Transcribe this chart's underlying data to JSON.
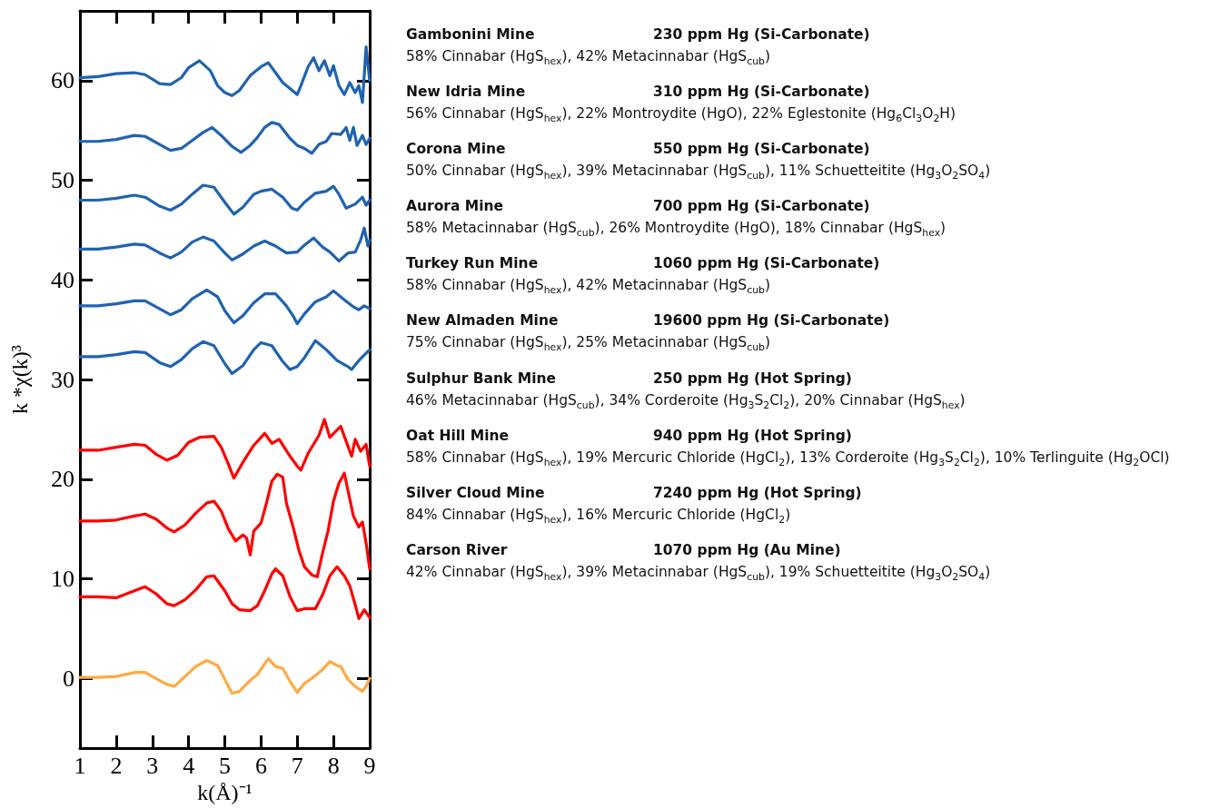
{
  "chart_data": {
    "type": "line",
    "xlabel": "k(Å)⁻¹",
    "ylabel": "k *χ(k)³",
    "xlim": [
      1,
      9
    ],
    "ylim": [
      -7,
      67
    ],
    "xticks": [
      1,
      2,
      3,
      4,
      5,
      6,
      7,
      8,
      9
    ],
    "yticks": [
      0,
      10,
      20,
      30,
      40,
      50,
      60
    ],
    "series": [
      {
        "color": "#1f63b0",
        "x": [
          1,
          1.5,
          2,
          2.5,
          2.8,
          3.2,
          3.5,
          3.8,
          4.0,
          4.3,
          4.6,
          4.8,
          5.0,
          5.2,
          5.4,
          5.7,
          6.0,
          6.2,
          6.4,
          6.6,
          6.8,
          7.0,
          7.1,
          7.3,
          7.45,
          7.6,
          7.75,
          7.9,
          8.0,
          8.15,
          8.3,
          8.45,
          8.6,
          8.7,
          8.8,
          8.9,
          9.0
        ],
        "values": [
          60.3,
          60.4,
          60.7,
          60.8,
          60.6,
          59.7,
          59.6,
          60.3,
          61.3,
          62.0,
          61.0,
          59.5,
          58.8,
          58.5,
          59.0,
          60.5,
          61.4,
          61.8,
          60.8,
          59.8,
          59.2,
          58.6,
          59.5,
          61.4,
          62.3,
          61.0,
          62.0,
          60.5,
          61.5,
          59.5,
          58.6,
          59.8,
          58.8,
          59.5,
          57.8,
          63.4,
          60.0
        ]
      },
      {
        "color": "#1f63b0",
        "x": [
          1,
          1.5,
          2,
          2.5,
          2.8,
          3.2,
          3.5,
          3.8,
          4.1,
          4.4,
          4.65,
          4.9,
          5.2,
          5.45,
          5.7,
          5.9,
          6.1,
          6.3,
          6.5,
          6.8,
          7.0,
          7.2,
          7.4,
          7.6,
          7.8,
          7.95,
          8.2,
          8.35,
          8.45,
          8.55,
          8.65,
          8.8,
          8.9,
          9.0
        ],
        "values": [
          53.9,
          53.9,
          54.1,
          54.5,
          54.4,
          53.6,
          53.0,
          53.2,
          54.0,
          54.8,
          55.3,
          54.5,
          53.4,
          52.8,
          53.5,
          54.3,
          55.3,
          55.8,
          55.6,
          54.2,
          53.5,
          53.2,
          52.7,
          53.6,
          53.9,
          54.7,
          54.6,
          55.3,
          54.0,
          55.3,
          53.5,
          54.5,
          53.6,
          54.2
        ]
      },
      {
        "color": "#1f63b0",
        "x": [
          1,
          1.5,
          2,
          2.5,
          2.8,
          3.2,
          3.5,
          3.8,
          4.1,
          4.4,
          4.7,
          5.0,
          5.25,
          5.5,
          5.8,
          6.0,
          6.3,
          6.6,
          6.85,
          7.0,
          7.2,
          7.5,
          7.8,
          8.0,
          8.15,
          8.35,
          8.6,
          8.8,
          8.9,
          9.0
        ],
        "values": [
          48.0,
          48.0,
          48.2,
          48.5,
          48.3,
          47.4,
          47.0,
          47.6,
          48.6,
          49.5,
          49.3,
          47.8,
          46.6,
          47.3,
          48.6,
          48.9,
          49.1,
          48.3,
          47.2,
          47.0,
          47.8,
          48.7,
          48.9,
          49.4,
          48.6,
          47.2,
          47.6,
          48.3,
          47.5,
          48.0
        ]
      },
      {
        "color": "#1f63b0",
        "x": [
          1,
          1.5,
          2,
          2.5,
          2.8,
          3.2,
          3.5,
          3.8,
          4.1,
          4.4,
          4.7,
          5.0,
          5.2,
          5.5,
          5.8,
          6.1,
          6.4,
          6.7,
          7.0,
          7.2,
          7.45,
          7.7,
          7.9,
          8.15,
          8.4,
          8.6,
          8.75,
          8.85,
          8.95,
          9.0
        ],
        "values": [
          43.1,
          43.1,
          43.3,
          43.6,
          43.5,
          42.7,
          42.2,
          42.8,
          43.8,
          44.3,
          43.9,
          42.7,
          42.0,
          42.6,
          43.4,
          43.9,
          43.4,
          42.7,
          42.8,
          43.5,
          44.2,
          43.3,
          42.8,
          41.9,
          42.7,
          42.8,
          44.0,
          45.2,
          43.4,
          44.0
        ]
      },
      {
        "color": "#1f63b0",
        "x": [
          1,
          1.5,
          2,
          2.5,
          2.8,
          3.2,
          3.5,
          3.8,
          4.1,
          4.5,
          4.8,
          5.0,
          5.25,
          5.5,
          5.8,
          6.1,
          6.4,
          6.7,
          6.9,
          7.0,
          7.2,
          7.5,
          7.8,
          8.0,
          8.3,
          8.55,
          8.7,
          8.85,
          9.0
        ],
        "values": [
          37.4,
          37.4,
          37.6,
          37.9,
          37.9,
          37.1,
          36.5,
          37.0,
          38.1,
          39.0,
          38.3,
          36.9,
          35.7,
          36.4,
          37.7,
          38.6,
          38.6,
          37.4,
          36.3,
          35.6,
          36.6,
          37.8,
          38.3,
          38.9,
          38.0,
          37.3,
          37.0,
          37.4,
          37.1
        ]
      },
      {
        "color": "#1f63b0",
        "x": [
          1,
          1.5,
          2,
          2.5,
          2.8,
          3.2,
          3.5,
          3.8,
          4.1,
          4.4,
          4.7,
          5.0,
          5.2,
          5.5,
          5.8,
          6.0,
          6.3,
          6.6,
          6.8,
          7.0,
          7.2,
          7.5,
          7.8,
          8.1,
          8.4,
          8.5,
          8.7,
          9.0
        ],
        "values": [
          32.3,
          32.3,
          32.5,
          32.8,
          32.7,
          31.7,
          31.3,
          32.0,
          33.1,
          33.8,
          33.4,
          31.6,
          30.6,
          31.4,
          33.0,
          33.7,
          33.4,
          31.8,
          31.0,
          31.3,
          32.2,
          33.9,
          33.0,
          31.9,
          31.3,
          31.0,
          31.9,
          33.0
        ]
      },
      {
        "color": "#ff0000",
        "x": [
          1,
          1.5,
          2,
          2.5,
          2.8,
          3.1,
          3.4,
          3.7,
          4.0,
          4.3,
          4.7,
          4.9,
          5.1,
          5.25,
          5.5,
          5.8,
          6.1,
          6.3,
          6.5,
          6.8,
          7.0,
          7.1,
          7.3,
          7.6,
          7.75,
          7.9,
          8.2,
          8.35,
          8.5,
          8.6,
          8.75,
          8.9,
          9.0
        ],
        "values": [
          22.9,
          22.9,
          23.2,
          23.5,
          23.4,
          22.5,
          21.9,
          22.4,
          23.7,
          24.2,
          24.3,
          23.2,
          21.5,
          20.1,
          21.7,
          23.4,
          24.6,
          23.6,
          24.0,
          22.3,
          21.3,
          20.9,
          22.6,
          24.4,
          26.0,
          24.2,
          25.3,
          23.8,
          22.3,
          24.0,
          22.8,
          23.5,
          21.3
        ]
      },
      {
        "color": "#ff0000",
        "x": [
          1,
          1.5,
          2,
          2.5,
          2.8,
          3.1,
          3.4,
          3.6,
          3.9,
          4.2,
          4.5,
          4.7,
          4.9,
          5.1,
          5.3,
          5.5,
          5.6,
          5.7,
          5.8,
          6.0,
          6.15,
          6.3,
          6.45,
          6.6,
          6.7,
          6.9,
          7.05,
          7.2,
          7.4,
          7.55,
          7.7,
          7.85,
          8.0,
          8.15,
          8.3,
          8.45,
          8.55,
          8.7,
          8.8,
          8.9,
          9.0
        ],
        "values": [
          15.8,
          15.8,
          15.9,
          16.3,
          16.5,
          16.0,
          15.1,
          14.7,
          15.4,
          16.6,
          17.6,
          17.8,
          16.8,
          15.0,
          13.8,
          14.4,
          14.1,
          12.4,
          14.8,
          15.6,
          17.6,
          19.8,
          20.5,
          20.2,
          17.6,
          15.0,
          12.8,
          11.2,
          10.4,
          10.2,
          12.6,
          14.8,
          17.8,
          19.6,
          20.6,
          18.0,
          16.3,
          15.2,
          15.7,
          13.6,
          11.0
        ]
      },
      {
        "color": "#ff0000",
        "x": [
          1,
          1.5,
          2,
          2.5,
          2.8,
          3.1,
          3.4,
          3.6,
          3.9,
          4.2,
          4.5,
          4.7,
          5.0,
          5.2,
          5.4,
          5.7,
          5.9,
          6.1,
          6.3,
          6.4,
          6.6,
          6.8,
          7.0,
          7.2,
          7.5,
          7.7,
          7.9,
          8.1,
          8.3,
          8.45,
          8.6,
          8.7,
          8.85,
          9.0
        ],
        "values": [
          8.2,
          8.2,
          8.1,
          8.8,
          9.2,
          8.5,
          7.5,
          7.3,
          7.9,
          8.9,
          10.2,
          10.3,
          8.8,
          7.5,
          6.9,
          6.8,
          7.3,
          8.8,
          10.5,
          11.0,
          10.3,
          8.2,
          6.8,
          7.0,
          7.0,
          8.4,
          10.3,
          11.2,
          10.3,
          9.3,
          7.4,
          6.0,
          6.9,
          6.1
        ]
      },
      {
        "color": "#ffaa44",
        "x": [
          1,
          1.5,
          2,
          2.5,
          2.8,
          3.1,
          3.4,
          3.6,
          3.9,
          4.2,
          4.5,
          4.8,
          5.0,
          5.2,
          5.4,
          5.7,
          5.9,
          6.2,
          6.4,
          6.6,
          6.8,
          7.0,
          7.2,
          7.4,
          7.7,
          7.9,
          8.1,
          8.2,
          8.4,
          8.6,
          8.8,
          8.9,
          9.0
        ],
        "values": [
          0.1,
          0.1,
          0.2,
          0.6,
          0.6,
          0.0,
          -0.6,
          -0.8,
          0.2,
          1.2,
          1.8,
          1.3,
          -0.1,
          -1.5,
          -1.3,
          -0.2,
          0.4,
          2.0,
          1.2,
          1.0,
          -0.3,
          -1.4,
          -0.5,
          0.0,
          0.9,
          1.7,
          1.3,
          1.2,
          -0.1,
          -0.8,
          -1.3,
          -0.8,
          0.0
        ]
      }
    ],
    "annotations": [
      "Gambonini Mine",
      "230 ppm Hg (Si-Carbonate)",
      "58% Cinnabar (HgS$_{hex}$), 42% Metacinnabar (HgS$_{cub}$)",
      "New Idria Mine",
      "310 ppm Hg (Si-Carbonate)",
      "56% Cinnabar (HgS$_{hex}$), 22% Montroydite (HgO), 22% Eglestonite (Hg$_{6}$Cl$_{3}$O$_{2}$H)",
      "Corona Mine",
      "550 ppm Hg (Si-Carbonate)",
      "50% Cinnabar (HgS$_{hex}$), 39% Metacinnabar (HgS$_{cub}$), 11% Schuetteitite (Hg$_{3}$O$_{2}$SO$_{4}$)",
      "Aurora Mine",
      "700 ppm Hg (Si-Carbonate)",
      "58% Metacinnabar (HgS$_{cub}$), 26% Montroydite (HgO), 18% Cinnabar (HgS$_{hex}$)",
      "Turkey Run Mine",
      "1060 ppm Hg (Si-Carbonate)",
      "58% Cinnabar (HgS$_{hex}$), 42% Metacinnabar (HgS$_{cub}$)",
      "New Almaden Mine",
      "19600 ppm Hg (Si-Carbonate)",
      "75% Cinnabar (HgS$_{hex}$), 25% Metacinnabar (HgS$_{cub}$)",
      "Sulphur Bank Mine",
      "250 ppm Hg (Hot Spring)",
      "46% Metacinnabar (HgS$_{cub}$), 34% Corderoite (Hg$_{3}$S$_{2}$Cl$_{2}$), 20% Cinnabar (HgS$_{hex}$)",
      "Oat Hill Mine",
      "940 ppm Hg (Hot Spring)",
      "58% Cinnabar (HgS$_{hex}$), 19% Mercuric Chloride (HgCl$_{2}$), 13% Corderoite (Hg$_{3}$S$_{2}$Cl$_{2}$), 10% Terlinguite (Hg$_{2}$OCl)",
      "Silver Cloud Mine",
      "7240 ppm Hg (Hot Spring)",
      "84% Cinnabar (HgS$_{hex}$), 16% Mercuric Chloride (HgCl$_{2}$)",
      "Carson River",
      "1070 ppm Hg (Au Mine)",
      "42% Cinnabar (HgS$_{hex}$), 39% Metacinnabar (HgS$_{cub}$), 19% Schuetteitite (Hg$_{3}$O$_{2}$SO$_{4}$)"
    ]
  }
}
